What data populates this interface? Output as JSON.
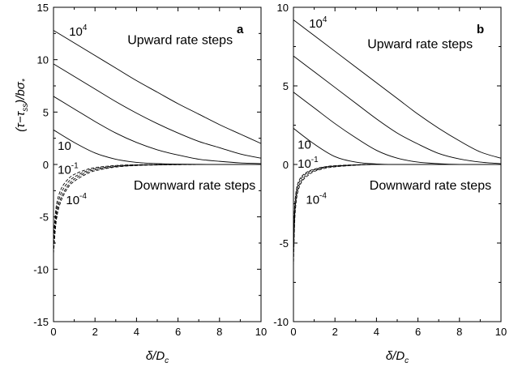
{
  "figure": {
    "ylabel": {
      "main": "(τ−τ",
      "sub": "ss",
      "mid": ")/bσ",
      "sub2": "*"
    },
    "xlabel": {
      "main": "δ/D",
      "sub": "c"
    }
  },
  "chart_data": [
    {
      "type": "line",
      "panel_label": "a",
      "xlim": [
        0,
        10
      ],
      "ylim": [
        -15,
        15
      ],
      "xticks": [
        "0",
        "2",
        "4",
        "6",
        "8",
        "10"
      ],
      "yticks": [
        "-15",
        "-10",
        "-5",
        "0",
        "5",
        "10",
        "15"
      ],
      "xtick_values": [
        0,
        2,
        4,
        6,
        8,
        10
      ],
      "ytick_values": [
        -15,
        -10,
        -5,
        0,
        5,
        10,
        15
      ],
      "annotations": {
        "upward": "Upward rate steps",
        "downward": "Downward rate steps",
        "top_curve_base": "10",
        "top_curve_exp": "4",
        "low_up_curve": "10",
        "high_down_base": "10",
        "high_down_exp": "-1",
        "low_down_base": "10",
        "low_down_exp": "-4"
      },
      "series": [
        {
          "style": "solid",
          "x": [
            0,
            1,
            2,
            3,
            4,
            5,
            6,
            7,
            8,
            9,
            10
          ],
          "y": [
            12.8,
            11.6,
            10.4,
            9.2,
            8.0,
            6.9,
            5.8,
            4.8,
            3.8,
            2.9,
            2.0
          ]
        },
        {
          "style": "solid",
          "x": [
            0,
            1,
            2,
            3,
            4,
            5,
            6,
            7,
            8,
            9,
            10
          ],
          "y": [
            9.6,
            8.4,
            7.2,
            6.0,
            4.9,
            3.9,
            3.0,
            2.2,
            1.6,
            1.0,
            0.6
          ]
        },
        {
          "style": "solid",
          "x": [
            0,
            1,
            2,
            3,
            4,
            5,
            6,
            7,
            8,
            9,
            10
          ],
          "y": [
            6.5,
            5.3,
            4.1,
            3.0,
            2.1,
            1.4,
            0.9,
            0.5,
            0.3,
            0.15,
            0.08
          ]
        },
        {
          "style": "solid",
          "x": [
            0,
            1,
            2,
            3,
            4,
            5,
            6,
            7,
            8,
            9,
            10
          ],
          "y": [
            3.3,
            2.1,
            1.1,
            0.5,
            0.2,
            0.08,
            0.03,
            0.01,
            0.0,
            0.0,
            0.0
          ]
        },
        {
          "style": "dashed",
          "x": [
            0,
            0.1,
            0.2,
            0.4,
            0.7,
            1,
            1.5,
            2,
            3,
            4,
            5,
            6,
            8,
            10
          ],
          "y": [
            -8.5,
            -6.0,
            -4.6,
            -3.3,
            -2.2,
            -1.6,
            -1.0,
            -0.6,
            -0.25,
            -0.1,
            -0.05,
            -0.02,
            0.0,
            0.0
          ]
        },
        {
          "style": "dashed",
          "x": [
            0,
            0.1,
            0.2,
            0.4,
            0.7,
            1,
            1.5,
            2,
            3,
            4,
            5,
            6,
            8,
            10
          ],
          "y": [
            -8.0,
            -5.5,
            -4.2,
            -3.0,
            -2.0,
            -1.4,
            -0.85,
            -0.5,
            -0.2,
            -0.08,
            -0.03,
            -0.01,
            0.0,
            0.0
          ]
        },
        {
          "style": "dashed",
          "x": [
            0,
            0.1,
            0.2,
            0.4,
            0.7,
            1,
            1.5,
            2,
            3,
            4,
            5,
            6,
            8,
            10
          ],
          "y": [
            -7.5,
            -5.0,
            -3.8,
            -2.6,
            -1.7,
            -1.2,
            -0.7,
            -0.4,
            -0.15,
            -0.05,
            -0.02,
            0.0,
            0.0,
            0.0
          ]
        },
        {
          "style": "dashed",
          "x": [
            0,
            0.1,
            0.2,
            0.4,
            0.7,
            1,
            1.5,
            2,
            3,
            4,
            5,
            6,
            8,
            10
          ],
          "y": [
            -7.0,
            -4.5,
            -3.3,
            -2.2,
            -1.4,
            -0.95,
            -0.55,
            -0.3,
            -0.1,
            -0.03,
            -0.01,
            0.0,
            0.0,
            0.0
          ]
        }
      ]
    },
    {
      "type": "line",
      "panel_label": "b",
      "xlim": [
        0,
        10
      ],
      "ylim": [
        -10,
        10
      ],
      "xticks": [
        "0",
        "2",
        "4",
        "6",
        "8",
        "10"
      ],
      "yticks": [
        "-10",
        "-5",
        "0",
        "5",
        "10"
      ],
      "xtick_values": [
        0,
        2,
        4,
        6,
        8,
        10
      ],
      "ytick_values": [
        -10,
        -5,
        0,
        5,
        10
      ],
      "annotations": {
        "upward": "Upward rate steps",
        "downward": "Downward rate steps",
        "top_curve_base": "10",
        "top_curve_exp": "4",
        "low_up_curve": "10",
        "high_down_base": "10",
        "high_down_exp": "-1",
        "low_down_base": "10",
        "low_down_exp": "-4"
      },
      "series": [
        {
          "style": "solid",
          "x": [
            0,
            1,
            2,
            3,
            4,
            5,
            6,
            7,
            8,
            9,
            10
          ],
          "y": [
            9.2,
            8.2,
            7.2,
            6.2,
            5.2,
            4.2,
            3.2,
            2.3,
            1.5,
            0.8,
            0.4
          ]
        },
        {
          "style": "solid",
          "x": [
            0,
            1,
            2,
            3,
            4,
            5,
            6,
            7,
            8,
            9,
            10
          ],
          "y": [
            6.9,
            5.9,
            4.9,
            3.9,
            2.9,
            2.0,
            1.3,
            0.7,
            0.35,
            0.15,
            0.05
          ]
        },
        {
          "style": "solid",
          "x": [
            0,
            1,
            2,
            3,
            4,
            5,
            6,
            7,
            8,
            9,
            10
          ],
          "y": [
            4.6,
            3.6,
            2.6,
            1.7,
            0.9,
            0.4,
            0.15,
            0.05,
            0.0,
            0.0,
            0.0
          ]
        },
        {
          "style": "solid",
          "x": [
            0,
            1,
            2,
            3,
            4,
            5,
            6,
            7,
            8,
            9,
            10
          ],
          "y": [
            2.3,
            1.3,
            0.5,
            0.15,
            0.03,
            0.0,
            0.0,
            0.0,
            0.0,
            0.0,
            0.0
          ]
        },
        {
          "style": "dashed",
          "x": [
            0,
            0.05,
            0.1,
            0.2,
            0.4,
            0.7,
            1,
            1.5,
            2,
            3,
            4,
            6,
            8,
            10
          ],
          "y": [
            -6.5,
            -4.0,
            -2.8,
            -1.8,
            -1.1,
            -0.7,
            -0.45,
            -0.25,
            -0.15,
            -0.05,
            0.0,
            0.0,
            0.0,
            0.0
          ]
        },
        {
          "style": "dashed",
          "x": [
            0,
            0.05,
            0.1,
            0.2,
            0.4,
            0.7,
            1,
            1.5,
            2,
            3,
            4,
            6,
            8,
            10
          ],
          "y": [
            -6.0,
            -3.6,
            -2.5,
            -1.6,
            -1.0,
            -0.6,
            -0.4,
            -0.2,
            -0.12,
            -0.04,
            0.0,
            0.0,
            0.0,
            0.0
          ]
        },
        {
          "style": "dashed",
          "x": [
            0,
            0.05,
            0.1,
            0.2,
            0.4,
            0.7,
            1,
            1.5,
            2,
            3,
            4,
            6,
            8,
            10
          ],
          "y": [
            -5.5,
            -3.2,
            -2.2,
            -1.4,
            -0.85,
            -0.5,
            -0.33,
            -0.17,
            -0.1,
            -0.03,
            0.0,
            0.0,
            0.0,
            0.0
          ]
        },
        {
          "style": "dashed",
          "x": [
            0,
            0.05,
            0.1,
            0.2,
            0.4,
            0.7,
            1,
            1.5,
            2,
            3,
            4,
            6,
            8,
            10
          ],
          "y": [
            -5.0,
            -2.9,
            -2.0,
            -1.25,
            -0.75,
            -0.45,
            -0.3,
            -0.15,
            -0.08,
            -0.02,
            0.0,
            0.0,
            0.0,
            0.0
          ]
        }
      ]
    }
  ]
}
